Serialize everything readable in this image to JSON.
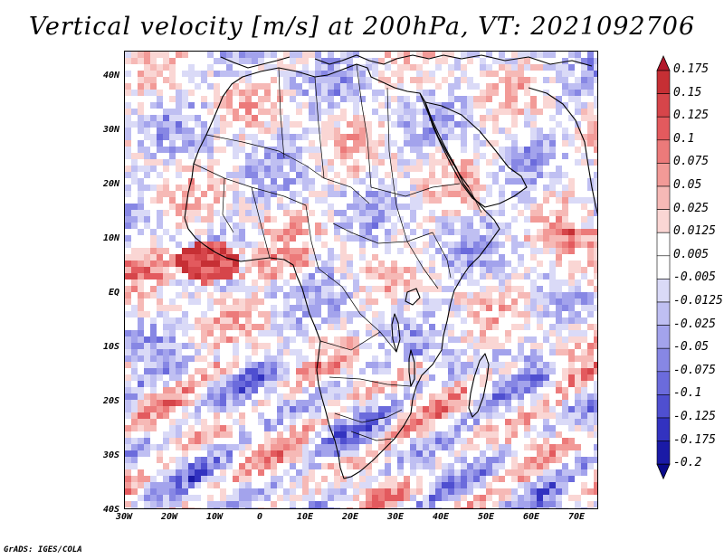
{
  "title": "Vertical velocity [m/s] at 200hPa, VT: 2021092706",
  "credit": "GrADS: IGES/COLA",
  "axes": {
    "lat_labels": [
      "40N",
      "30N",
      "20N",
      "10N",
      "EQ",
      "10S",
      "20S",
      "30S",
      "40S"
    ],
    "lon_labels": [
      "30W",
      "20W",
      "10W",
      "0",
      "10E",
      "20E",
      "30E",
      "40E",
      "50E",
      "60E",
      "70E"
    ]
  },
  "colorbar": {
    "levels": [
      "0.175",
      "0.15",
      "0.125",
      "0.1",
      "0.075",
      "0.05",
      "0.025",
      "0.0125",
      "0.005",
      "-0.005",
      "-0.0125",
      "-0.025",
      "-0.05",
      "-0.075",
      "-0.1",
      "-0.125",
      "-0.175",
      "-0.2"
    ],
    "colors": [
      "#b2182b",
      "#c62f34",
      "#d6454a",
      "#e35a5e",
      "#ec7a7a",
      "#f29a97",
      "#f6b9b6",
      "#fad6d4",
      "#ffffff",
      "#ffffff",
      "#dadaf7",
      "#bfbff2",
      "#a3a3ec",
      "#8787e4",
      "#6b6bdc",
      "#4f4fd0",
      "#3232c0",
      "#1a1aa6",
      "#0a0a8a"
    ]
  },
  "chart_data": {
    "type": "heatmap",
    "title": "Vertical velocity [m/s] at 200hPa, VT: 2021092706",
    "variable": "Vertical velocity",
    "units": "m/s",
    "level": "200hPa",
    "valid_time": "2021092706",
    "lon_range": [
      -30,
      75
    ],
    "lat_range": [
      -40,
      45
    ],
    "colorbar_levels": [
      0.175,
      0.15,
      0.125,
      0.1,
      0.075,
      0.05,
      0.025,
      0.0125,
      0.005,
      -0.005,
      -0.0125,
      -0.025,
      -0.05,
      -0.075,
      -0.1,
      -0.125,
      -0.175,
      -0.2
    ],
    "xlabel": "",
    "ylabel": ""
  }
}
